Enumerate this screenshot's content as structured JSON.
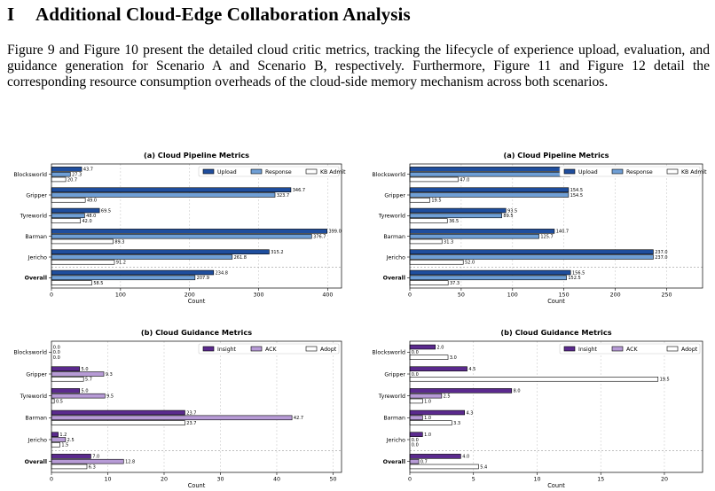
{
  "section": {
    "number": "I",
    "title": "Additional Cloud-Edge Collaboration Analysis",
    "paragraph": "Figure 9 and Figure 10 present the detailed cloud critic metrics, tracking the lifecycle of experience upload, evaluation, and guidance generation for Scenario A and Scenario B, respectively. Furthermore, Figure 11 and Figure 12 detail the corresponding resource consumption overheads of the cloud-side memory mechanism across both scenarios."
  },
  "colors": {
    "upload": "#1f4e9e",
    "response": "#6f9fd6",
    "kb_admit": "#ffffff",
    "insight": "#5b2a8e",
    "ack": "#b79bd6",
    "adopt": "#ffffff"
  },
  "chart_data": [
    {
      "type": "bar",
      "orientation": "horizontal",
      "title": "(a) Cloud Pipeline Metrics",
      "xlabel": "Count",
      "ylabel": "",
      "xlim": [
        0,
        420
      ],
      "xticks": [
        0,
        100,
        200,
        300,
        400
      ],
      "legend_position": "top-right",
      "categories": [
        "Blocksworld",
        "Gripper",
        "Tyreworld",
        "Barman",
        "Jericho",
        "Overall"
      ],
      "series": [
        {
          "name": "Upload",
          "values": [
            43.7,
            346.7,
            69.5,
            399.0,
            315.2,
            234.8
          ]
        },
        {
          "name": "Response",
          "values": [
            27.3,
            323.7,
            48.0,
            376.7,
            261.8,
            207.9
          ]
        },
        {
          "name": "KB Admit",
          "values": [
            20.7,
            49.0,
            42.0,
            89.3,
            91.2,
            58.5
          ]
        }
      ]
    },
    {
      "type": "bar",
      "orientation": "horizontal",
      "title": "(a) Cloud Pipeline Metrics",
      "xlabel": "Count",
      "ylabel": "",
      "xlim": [
        0,
        285
      ],
      "xticks": [
        0,
        50,
        100,
        150,
        200,
        250
      ],
      "legend_position": "top-right",
      "categories": [
        "Blocksworld",
        "Gripper",
        "Tyreworld",
        "Barman",
        "Jericho",
        "Overall"
      ],
      "series": [
        {
          "name": "Upload",
          "values": [
            156.0,
            154.5,
            93.5,
            140.7,
            237.0,
            156.5
          ]
        },
        {
          "name": "Response",
          "values": [
            156.0,
            154.5,
            89.5,
            125.7,
            237.0,
            152.5
          ]
        },
        {
          "name": "KB Admit",
          "values": [
            47.0,
            19.5,
            36.5,
            31.3,
            52.0,
            37.3
          ]
        }
      ]
    },
    {
      "type": "bar",
      "orientation": "horizontal",
      "title": "(b) Cloud Guidance Metrics",
      "xlabel": "Count",
      "ylabel": "",
      "xlim": [
        0,
        51.5
      ],
      "xticks": [
        0,
        10,
        20,
        30,
        40,
        50
      ],
      "legend_position": "top-right",
      "categories": [
        "Blocksworld",
        "Gripper",
        "Tyreworld",
        "Barman",
        "Jericho",
        "Overall"
      ],
      "series": [
        {
          "name": "Insight",
          "values": [
            0.0,
            5.0,
            5.0,
            23.7,
            1.2,
            7.0
          ]
        },
        {
          "name": "ACK",
          "values": [
            0.0,
            9.3,
            9.5,
            42.7,
            2.5,
            12.8
          ]
        },
        {
          "name": "Adopt",
          "values": [
            0.0,
            5.7,
            0.5,
            23.7,
            1.5,
            6.3
          ]
        }
      ]
    },
    {
      "type": "bar",
      "orientation": "horizontal",
      "title": "(b) Cloud Guidance Metrics",
      "xlabel": "Count",
      "ylabel": "",
      "xlim": [
        0,
        23
      ],
      "xticks": [
        0,
        5,
        10,
        15,
        20
      ],
      "legend_position": "top-right",
      "categories": [
        "Blocksworld",
        "Gripper",
        "Tyreworld",
        "Barman",
        "Jericho",
        "Overall"
      ],
      "series": [
        {
          "name": "Insight",
          "values": [
            2.0,
            4.5,
            8.0,
            4.3,
            1.0,
            4.0
          ]
        },
        {
          "name": "ACK",
          "values": [
            0.0,
            0.0,
            2.5,
            1.0,
            0.0,
            0.7
          ]
        },
        {
          "name": "Adopt",
          "values": [
            3.0,
            19.5,
            1.0,
            3.3,
            0.0,
            5.4
          ]
        }
      ]
    }
  ]
}
